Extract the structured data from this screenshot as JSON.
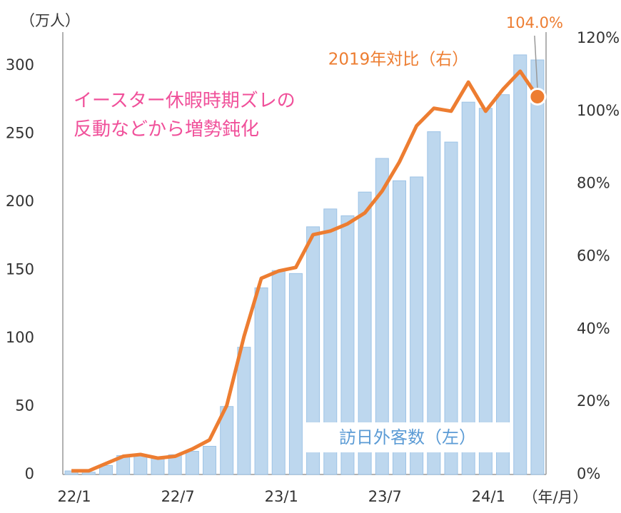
{
  "chart_data": {
    "type": "bar+line",
    "y_unit_label": "（万人）",
    "x_unit_label": "（年/月）",
    "annotation": [
      "イースター休暇時期ズレの",
      "反動などから増勢鈍化"
    ],
    "categories": [
      "22/1",
      null,
      null,
      null,
      null,
      null,
      "22/7",
      null,
      null,
      null,
      null,
      null,
      "23/1",
      null,
      null,
      null,
      null,
      null,
      "23/7",
      null,
      null,
      null,
      null,
      null,
      "24/1",
      null,
      null,
      null
    ],
    "series": [
      {
        "name": "訪日外客数（左）",
        "type": "bar",
        "color": "#bdd7ee",
        "axis": "y",
        "values": [
          2.6,
          1.7,
          6.6,
          13.9,
          14.7,
          12,
          14.5,
          17,
          20.7,
          49.9,
          93.4,
          137,
          149.7,
          147.5,
          181.8,
          194.9,
          189.9,
          207.3,
          232,
          215.6,
          218.4,
          251.6,
          244,
          273.3,
          268.8,
          278.8,
          308,
          304.3
        ]
      },
      {
        "name": "2019年対比（右）",
        "type": "line",
        "color": "#ed7d31",
        "axis": "y2",
        "values": [
          1,
          1,
          3,
          5,
          5.5,
          4.5,
          5,
          7,
          9.5,
          19,
          38,
          54,
          56,
          57,
          66,
          67,
          69,
          72,
          78,
          86,
          96,
          100.8,
          100,
          108,
          100,
          106,
          111,
          104
        ],
        "value_labels": [
          null,
          null,
          null,
          null,
          null,
          null,
          null,
          null,
          null,
          null,
          null,
          null,
          null,
          null,
          null,
          null,
          null,
          null,
          null,
          null,
          null,
          null,
          null,
          null,
          null,
          null,
          null,
          "104.0%"
        ]
      }
    ],
    "ylim": [
      0,
      320
    ],
    "yticks": [
      0,
      50,
      100,
      150,
      200,
      250,
      300
    ],
    "y2lim": [
      0,
      120
    ],
    "y2ticks": [
      {
        "value": 0,
        "label": "0%"
      },
      {
        "value": 20,
        "label": "20%"
      },
      {
        "value": 40,
        "label": "40%"
      },
      {
        "value": 60,
        "label": "60%"
      },
      {
        "value": 80,
        "label": "80%"
      },
      {
        "value": 100,
        "label": "100%"
      },
      {
        "value": 120,
        "label": "120%"
      }
    ],
    "grid": false
  }
}
